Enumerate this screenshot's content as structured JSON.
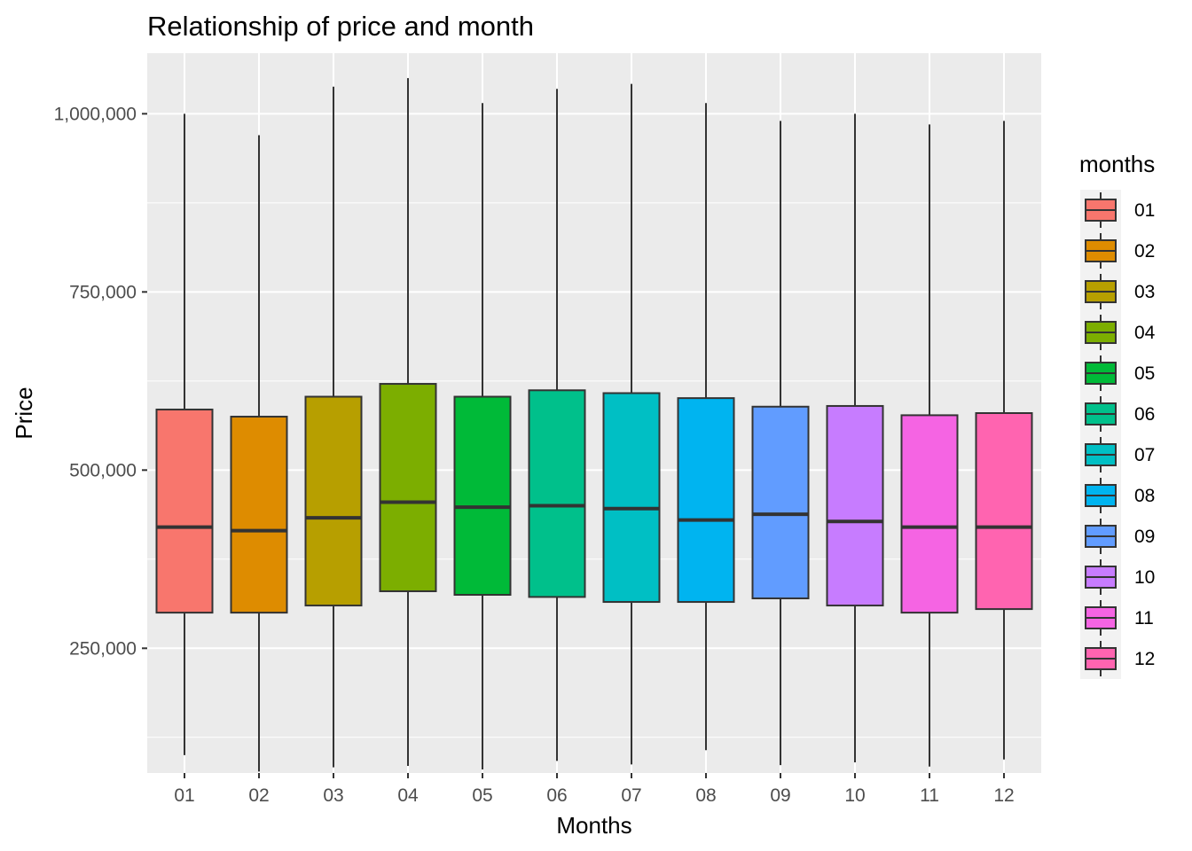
{
  "chart_data": {
    "type": "boxplot",
    "title": "Relationship of price and month",
    "xlabel": "Months",
    "ylabel": "Price",
    "ylim": [
      75000,
      1085000
    ],
    "y_ticks": [
      250000,
      500000,
      750000,
      1000000
    ],
    "y_tick_labels": [
      "250,000",
      "500,000",
      "750,000",
      "1,000,000"
    ],
    "grid": true,
    "legend": {
      "title": "months",
      "position": "right"
    },
    "categories": [
      "01",
      "02",
      "03",
      "04",
      "05",
      "06",
      "07",
      "08",
      "09",
      "10",
      "11",
      "12"
    ],
    "boxes": [
      {
        "month": "01",
        "min": 100000,
        "q1": 300000,
        "median": 420000,
        "q3": 585000,
        "max": 1000000,
        "color": "#F8766D"
      },
      {
        "month": "02",
        "min": 77000,
        "q1": 300000,
        "median": 415000,
        "q3": 575000,
        "max": 970000,
        "color": "#DE8C00"
      },
      {
        "month": "03",
        "min": 83000,
        "q1": 310000,
        "median": 433000,
        "q3": 603000,
        "max": 1038000,
        "color": "#B79F00"
      },
      {
        "month": "04",
        "min": 85000,
        "q1": 330000,
        "median": 455000,
        "q3": 621000,
        "max": 1050000,
        "color": "#7CAE00"
      },
      {
        "month": "05",
        "min": 80000,
        "q1": 325000,
        "median": 448000,
        "q3": 603000,
        "max": 1015000,
        "color": "#00BA38"
      },
      {
        "month": "06",
        "min": 92000,
        "q1": 322000,
        "median": 450000,
        "q3": 612000,
        "max": 1035000,
        "color": "#00C08B"
      },
      {
        "month": "07",
        "min": 87000,
        "q1": 315000,
        "median": 446000,
        "q3": 608000,
        "max": 1042000,
        "color": "#00BFC4"
      },
      {
        "month": "08",
        "min": 107000,
        "q1": 315000,
        "median": 430000,
        "q3": 601000,
        "max": 1015000,
        "color": "#00B4F0"
      },
      {
        "month": "09",
        "min": 86000,
        "q1": 320000,
        "median": 438000,
        "q3": 589000,
        "max": 990000,
        "color": "#619CFF"
      },
      {
        "month": "10",
        "min": 90000,
        "q1": 310000,
        "median": 428000,
        "q3": 590000,
        "max": 1000000,
        "color": "#C77CFF"
      },
      {
        "month": "11",
        "min": 84000,
        "q1": 300000,
        "median": 420000,
        "q3": 577000,
        "max": 985000,
        "color": "#F564E3"
      },
      {
        "month": "12",
        "min": 94000,
        "q1": 305000,
        "median": 420000,
        "q3": 580000,
        "max": 990000,
        "color": "#FF64B0"
      }
    ]
  }
}
